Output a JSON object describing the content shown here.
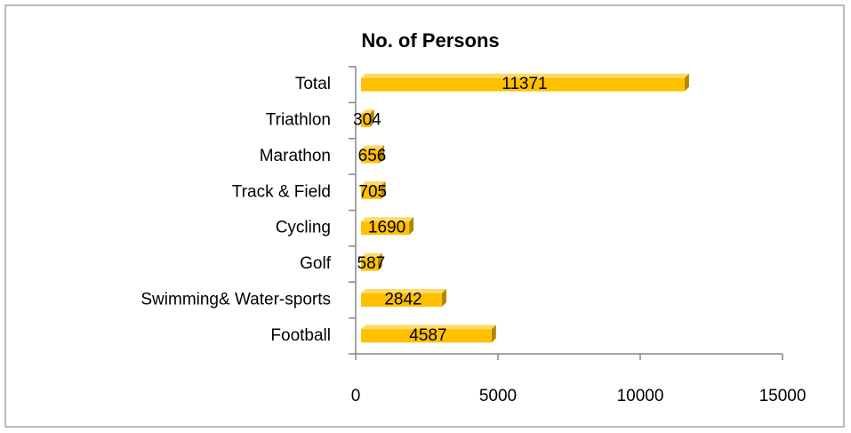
{
  "chart_data": {
    "type": "bar",
    "orientation": "horizontal",
    "title": "No. of Persons",
    "categories": [
      "Football",
      "Swimming& Water-sports",
      "Golf",
      "Cycling",
      "Track & Field",
      "Marathon",
      "Triathlon",
      "Total"
    ],
    "values": [
      4587,
      2842,
      587,
      1690,
      705,
      656,
      304,
      11371
    ],
    "color": "#ffc000",
    "xlim": [
      0,
      15000
    ],
    "xticks": [
      0,
      5000,
      10000,
      15000
    ],
    "grid": false
  }
}
